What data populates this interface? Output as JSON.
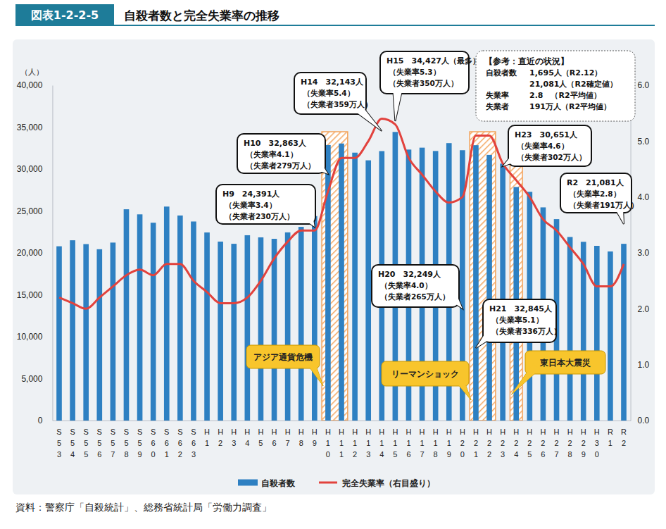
{
  "chart_data": {
    "type": "bar",
    "figure_label": "図表1-2-2-5",
    "title": "自殺者数と完全失業率の推移",
    "y_label": "（人）",
    "categories": [
      "S53",
      "S54",
      "S55",
      "S56",
      "S57",
      "S58",
      "S59",
      "S60",
      "S61",
      "S62",
      "S63",
      "H1",
      "H2",
      "H3",
      "H4",
      "H5",
      "H6",
      "H7",
      "H8",
      "H9",
      "H10",
      "H11",
      "H12",
      "H13",
      "H14",
      "H15",
      "H16",
      "H17",
      "H18",
      "H19",
      "H20",
      "H21",
      "H22",
      "H23",
      "H24",
      "H25",
      "H26",
      "H27",
      "H28",
      "H29",
      "H30",
      "R1",
      "R2"
    ],
    "series": [
      {
        "name": "自殺者数",
        "type": "bar",
        "color": "#2e80c2",
        "values": [
          20788,
          21503,
          21048,
          20434,
          21228,
          25202,
          24596,
          23599,
          25524,
          24460,
          23742,
          22436,
          21346,
          21084,
          22104,
          21851,
          21679,
          22445,
          23104,
          24391,
          32863,
          33048,
          31957,
          31042,
          32143,
          34427,
          32325,
          32552,
          32155,
          33093,
          32249,
          32845,
          31690,
          30651,
          27858,
          27283,
          25427,
          24025,
          21897,
          21321,
          20840,
          20169,
          21081
        ]
      },
      {
        "name": "完全失業率（右目盛り）",
        "type": "line",
        "color": "#e2423d",
        "axis": "y2",
        "values": [
          2.2,
          2.1,
          2.0,
          2.2,
          2.4,
          2.6,
          2.7,
          2.6,
          2.8,
          2.8,
          2.5,
          2.3,
          2.1,
          2.1,
          2.2,
          2.5,
          2.9,
          3.2,
          3.4,
          3.4,
          4.1,
          4.7,
          4.7,
          5.0,
          5.4,
          5.3,
          4.7,
          4.4,
          4.1,
          3.9,
          4.0,
          5.1,
          5.1,
          4.6,
          4.3,
          4.0,
          3.6,
          3.4,
          3.1,
          2.8,
          2.4,
          2.4,
          2.8
        ]
      }
    ],
    "ylim": [
      0,
      40000
    ],
    "yticks": [
      0,
      {
        "value": 5000,
        "label": "5,000"
      },
      {
        "value": 10000,
        "label": "10,000"
      },
      {
        "value": 15000,
        "label": "15,000"
      },
      {
        "value": 20000,
        "label": "20,000"
      },
      {
        "value": 25000,
        "label": "25,000"
      },
      {
        "value": 30000,
        "label": "30,000"
      },
      {
        "value": 35000,
        "label": "35,000"
      },
      {
        "value": 40000,
        "label": "40,000"
      }
    ],
    "y2lim": [
      0,
      6
    ],
    "y2ticks": [
      {
        "value": 0,
        "label": "0.0"
      },
      {
        "value": 1,
        "label": "1.0"
      },
      {
        "value": 2,
        "label": "2.0"
      },
      {
        "value": 3,
        "label": "3.0"
      },
      {
        "value": 4,
        "label": "4.0"
      },
      {
        "value": 5,
        "label": "5.0"
      },
      {
        "value": 6,
        "label": "6.0"
      }
    ],
    "legend": "bottom",
    "annotations": [
      {
        "category": "H9",
        "lines": [
          "H9　24,391人",
          "（失業率3.4）",
          "（失業者230万人）"
        ]
      },
      {
        "category": "H10",
        "lines": [
          "H10　32,863人",
          "（失業率4.1）",
          "（失業者279万人）"
        ]
      },
      {
        "category": "H14",
        "lines": [
          "H14　32,143人",
          "（失業率5.4）",
          "（失業者359万人）"
        ]
      },
      {
        "category": "H15",
        "lines": [
          "H15　34,427人（最多）",
          "（失業率5.3）",
          "（失業者350万人）"
        ]
      },
      {
        "category": "H20",
        "lines": [
          "H20　32,249人",
          "（失業率4.0）",
          "（失業者265万人）"
        ]
      },
      {
        "category": "H21",
        "lines": [
          "H21　32,845人",
          "（失業率5.1）",
          "（失業者336万人）"
        ]
      },
      {
        "category": "H23",
        "lines": [
          "H23　30,651人",
          "（失業率4.6）",
          "（失業者302万人）"
        ]
      },
      {
        "category": "R2",
        "lines": [
          "R2　21,081人",
          "（失業率2.8）",
          "（失業者191万人）"
        ]
      }
    ],
    "events": [
      {
        "label": "アジア通貨危機",
        "from": "H10",
        "to": "H11"
      },
      {
        "label": "リーマンショック",
        "from": "H21",
        "to": "H22"
      },
      {
        "label": "東日本大震災",
        "from": "H24",
        "to": "H24"
      }
    ],
    "reference": {
      "title": "【参考：直近の状況】",
      "rows": [
        {
          "label": "自殺者数",
          "values": [
            "1,695人（R2.12）",
            "21,081人（R2確定値）"
          ]
        },
        {
          "label": "失業率",
          "values": [
            "2.8　（R2平均値）"
          ]
        },
        {
          "label": "失業者",
          "values": [
            "191万人（R2平均値）"
          ]
        }
      ]
    },
    "source": "資料：警察庁「自殺統計」、総務省統計局「労働力調査」"
  }
}
